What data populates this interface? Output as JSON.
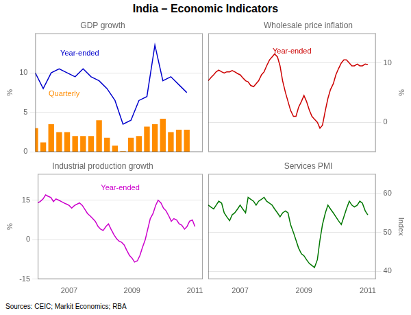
{
  "title": "India – Economic Indicators",
  "annotations": [
    "Sources: CEIC; Markit Economics; RBA"
  ],
  "chart_data": [
    {
      "type": "line",
      "title": "GDP growth",
      "x": [
        2006.0,
        2006.25,
        2006.5,
        2006.75,
        2007.0,
        2007.25,
        2007.5,
        2007.75,
        2008.0,
        2008.25,
        2008.5,
        2008.75,
        2009.0,
        2009.25,
        2009.5,
        2009.75,
        2010.0,
        2010.25,
        2010.5,
        2010.75
      ],
      "series": [
        {
          "name": "Year-ended",
          "type": "line",
          "color": "#0000CC",
          "values": [
            10.0,
            8.0,
            10.0,
            10.5,
            10.0,
            9.5,
            10.5,
            9.5,
            9.0,
            8.0,
            6.5,
            3.5,
            4.0,
            6.5,
            7.0,
            13.5,
            9.0,
            9.5,
            8.5,
            7.5
          ]
        },
        {
          "name": "Quarterly",
          "type": "bar",
          "color": "#FF8C00",
          "values": [
            3.0,
            1.2,
            3.5,
            2.5,
            2.5,
            2.0,
            2.0,
            2.0,
            4.0,
            1.8,
            0.8,
            0.1,
            1.8,
            2.0,
            3.2,
            3.5,
            4.2,
            2.5,
            2.8,
            2.8
          ]
        }
      ],
      "xlim": [
        2006.0,
        2011.25
      ],
      "xticks": [
        2007,
        2009,
        2011
      ],
      "ylim": [
        0,
        15
      ],
      "yticks": [
        0,
        5,
        10
      ],
      "ylabel": "%",
      "grid": "y",
      "tick_labels": "y"
    },
    {
      "type": "line",
      "title": "Wholesale price inflation",
      "x": [
        2006.0,
        2006.08,
        2006.17,
        2006.25,
        2006.33,
        2006.42,
        2006.5,
        2006.58,
        2006.67,
        2006.75,
        2006.83,
        2006.92,
        2007.0,
        2007.08,
        2007.17,
        2007.25,
        2007.33,
        2007.42,
        2007.5,
        2007.58,
        2007.67,
        2007.75,
        2007.83,
        2007.92,
        2008.0,
        2008.08,
        2008.17,
        2008.25,
        2008.33,
        2008.42,
        2008.5,
        2008.58,
        2008.67,
        2008.75,
        2008.83,
        2008.92,
        2009.0,
        2009.08,
        2009.17,
        2009.25,
        2009.33,
        2009.42,
        2009.5,
        2009.58,
        2009.67,
        2009.75,
        2009.83,
        2009.92,
        2010.0,
        2010.08,
        2010.17,
        2010.25,
        2010.33,
        2010.42,
        2010.5,
        2010.58,
        2010.67,
        2010.75,
        2010.83,
        2010.92,
        2011.0
      ],
      "series": [
        {
          "name": "Year-ended",
          "color": "#CC0000",
          "axis": "y2",
          "values": [
            7.0,
            7.5,
            8.0,
            8.5,
            8.8,
            8.5,
            8.3,
            8.5,
            8.5,
            8.7,
            8.5,
            8.2,
            8.0,
            7.5,
            7.0,
            6.8,
            6.2,
            6.0,
            6.5,
            7.0,
            8.0,
            8.5,
            9.5,
            10.5,
            11.0,
            11.5,
            11.0,
            9.5,
            7.0,
            5.0,
            3.5,
            2.0,
            1.0,
            1.0,
            2.5,
            3.5,
            4.5,
            3.5,
            2.0,
            1.0,
            0.5,
            0.0,
            -1.0,
            -0.5,
            2.0,
            4.0,
            5.5,
            6.5,
            8.0,
            9.0,
            10.0,
            10.5,
            10.5,
            10.0,
            9.5,
            9.5,
            9.8,
            9.5,
            9.5,
            9.8,
            9.7
          ]
        }
      ],
      "xlim": [
        2006.0,
        2011.25
      ],
      "xticks": [
        2007,
        2009,
        2011
      ],
      "y2lim": [
        -5,
        15
      ],
      "y2ticks": [
        0,
        10
      ],
      "y2label": "%",
      "grid": "y",
      "tick_labels": "y"
    },
    {
      "type": "line",
      "title": "Industrial production growth",
      "x": [
        2006.0,
        2006.08,
        2006.17,
        2006.25,
        2006.33,
        2006.42,
        2006.5,
        2006.58,
        2006.67,
        2006.75,
        2006.83,
        2006.92,
        2007.0,
        2007.08,
        2007.17,
        2007.25,
        2007.33,
        2007.42,
        2007.5,
        2007.58,
        2007.67,
        2007.75,
        2007.83,
        2007.92,
        2008.0,
        2008.08,
        2008.17,
        2008.25,
        2008.33,
        2008.42,
        2008.5,
        2008.58,
        2008.67,
        2008.75,
        2008.83,
        2008.92,
        2009.0,
        2009.08,
        2009.17,
        2009.25,
        2009.33,
        2009.42,
        2009.5,
        2009.58,
        2009.67,
        2009.75,
        2009.83,
        2009.92,
        2010.0,
        2010.08,
        2010.17,
        2010.25,
        2010.33,
        2010.42,
        2010.5,
        2010.58,
        2010.67,
        2010.75,
        2010.83,
        2010.92,
        2011.0
      ],
      "series": [
        {
          "name": "Year-ended",
          "color": "#CC00CC",
          "values": [
            14.0,
            14.5,
            15.5,
            17.0,
            16.5,
            16.0,
            14.5,
            15.5,
            15.0,
            14.5,
            14.0,
            13.5,
            13.0,
            12.0,
            13.0,
            13.5,
            14.0,
            13.0,
            11.5,
            10.0,
            9.0,
            8.0,
            7.0,
            5.0,
            4.0,
            3.5,
            5.0,
            6.0,
            4.0,
            2.0,
            0.5,
            -0.5,
            -1.0,
            -2.0,
            -4.0,
            -6.0,
            -7.0,
            -8.5,
            -8.0,
            -6.0,
            -3.0,
            0.0,
            4.0,
            8.0,
            10.0,
            13.0,
            15.0,
            14.0,
            12.0,
            11.0,
            9.0,
            7.0,
            8.0,
            7.5,
            6.0,
            5.5,
            4.0,
            5.0,
            7.0,
            7.5,
            5.0
          ]
        }
      ],
      "xlim": [
        2006.0,
        2011.25
      ],
      "xticks": [
        2007,
        2009,
        2011
      ],
      "ylim": [
        -15,
        25
      ],
      "yticks": [
        -15,
        0,
        15
      ],
      "ylabel": "%",
      "grid": "y"
    },
    {
      "type": "line",
      "title": "Services PMI",
      "x": [
        2006.0,
        2006.08,
        2006.17,
        2006.25,
        2006.33,
        2006.42,
        2006.5,
        2006.58,
        2006.67,
        2006.75,
        2006.83,
        2006.92,
        2007.0,
        2007.08,
        2007.17,
        2007.25,
        2007.33,
        2007.42,
        2007.5,
        2007.58,
        2007.67,
        2007.75,
        2007.83,
        2007.92,
        2008.0,
        2008.08,
        2008.17,
        2008.25,
        2008.33,
        2008.42,
        2008.5,
        2008.58,
        2008.67,
        2008.75,
        2008.83,
        2008.92,
        2009.0,
        2009.08,
        2009.17,
        2009.25,
        2009.33,
        2009.42,
        2009.5,
        2009.58,
        2009.67,
        2009.75,
        2009.83,
        2009.92,
        2010.0,
        2010.08,
        2010.17,
        2010.25,
        2010.33,
        2010.42,
        2010.5,
        2010.58,
        2010.67,
        2010.75,
        2010.83,
        2010.92,
        2011.0
      ],
      "series": [
        {
          "color": "#007700",
          "axis": "y2",
          "values": [
            57.0,
            56.5,
            56.0,
            57.0,
            58.0,
            57.5,
            55.0,
            54.0,
            53.0,
            54.5,
            55.0,
            56.0,
            57.0,
            56.0,
            55.0,
            59.0,
            58.5,
            58.0,
            57.0,
            58.0,
            58.5,
            59.0,
            58.0,
            57.5,
            57.0,
            56.0,
            55.0,
            54.0,
            55.0,
            55.5,
            55.0,
            52.0,
            50.0,
            48.0,
            46.0,
            44.5,
            44.0,
            43.0,
            42.0,
            41.5,
            41.0,
            43.0,
            48.0,
            52.0,
            55.0,
            57.0,
            56.0,
            55.0,
            54.0,
            53.0,
            52.0,
            54.0,
            56.0,
            58.0,
            57.0,
            56.5,
            57.0,
            58.0,
            57.5,
            55.5,
            54.5
          ]
        }
      ],
      "xlim": [
        2006.0,
        2011.25
      ],
      "xticks": [
        2007,
        2009,
        2011
      ],
      "y2lim": [
        38,
        65
      ],
      "y2ticks": [
        40,
        50,
        60
      ],
      "y2label": "Index",
      "grid": "y"
    }
  ]
}
